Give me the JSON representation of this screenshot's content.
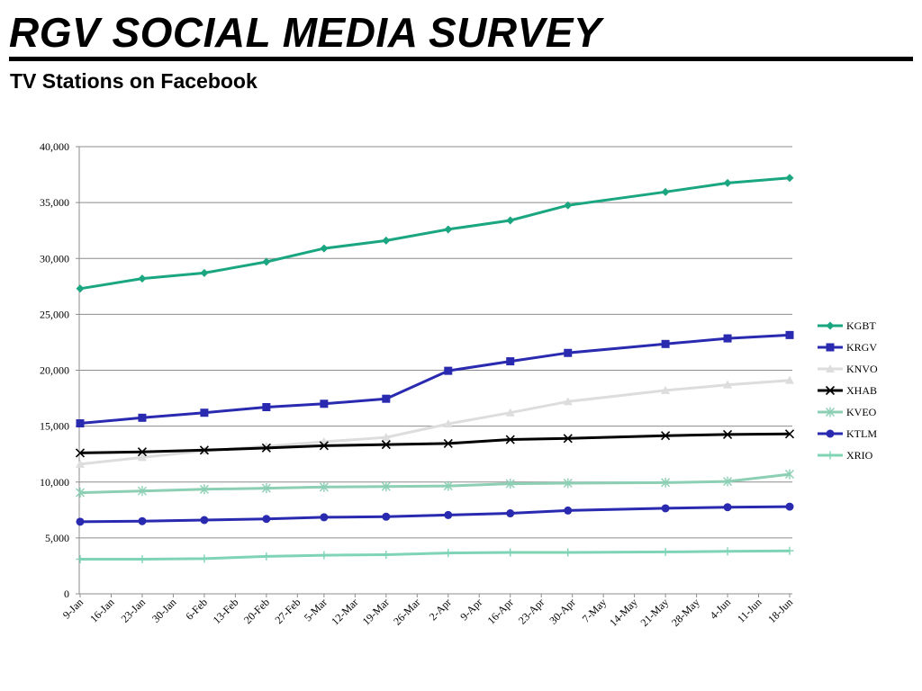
{
  "header": {
    "title": "RGV SOCIAL MEDIA SURVEY",
    "subtitle": "TV Stations on Facebook"
  },
  "chart_data": {
    "type": "line",
    "ylim": [
      0,
      40000
    ],
    "y_ticks": [
      0,
      5000,
      10000,
      15000,
      20000,
      25000,
      30000,
      35000,
      40000
    ],
    "y_tick_labels": [
      "0",
      "5,000",
      "10,000",
      "15,000",
      "20,000",
      "25,000",
      "30,000",
      "35,000",
      "40,000"
    ],
    "x_tick_labels": [
      "9-Jan",
      "16-Jan",
      "23-Jan",
      "30-Jan",
      "6-Feb",
      "13-Feb",
      "20-Feb",
      "27-Feb",
      "5-Mar",
      "12-Mar",
      "19-Mar",
      "26-Mar",
      "2-Apr",
      "9-Apr",
      "16-Apr",
      "23-Apr",
      "30-Apr",
      "7-May",
      "14-May",
      "21-May",
      "28-May",
      "4-Jun",
      "11-Jun",
      "18-Jun"
    ],
    "x": [
      "9-Jan",
      "23-Jan",
      "6-Feb",
      "20-Feb",
      "5-Mar",
      "19-Mar",
      "2-Apr",
      "16-Apr",
      "29-Apr",
      "21-May",
      "4-Jun",
      "18-Jun"
    ],
    "grid": true,
    "legend_position": "right",
    "series": [
      {
        "name": "KGBT",
        "color": "#1aa680",
        "marker": "diamond",
        "values": [
          27300,
          28200,
          28700,
          29700,
          30900,
          31600,
          32600,
          33400,
          34750,
          35950,
          36750,
          37200
        ]
      },
      {
        "name": "KRGV",
        "color": "#2a2ab0",
        "marker": "square",
        "values": [
          15250,
          15750,
          16200,
          16700,
          17000,
          17450,
          19950,
          20800,
          21550,
          22350,
          22850,
          23150
        ]
      },
      {
        "name": "KNVO",
        "color": "#dddddd",
        "marker": "triangle",
        "values": [
          11600,
          12200,
          12800,
          13200,
          13600,
          14000,
          15200,
          16200,
          17200,
          18200,
          18700,
          19100
        ]
      },
      {
        "name": "XHAB",
        "color": "#000000",
        "marker": "x",
        "values": [
          12600,
          12700,
          12850,
          13050,
          13250,
          13350,
          13450,
          13800,
          13900,
          14150,
          14250,
          14300
        ]
      },
      {
        "name": "KVEO",
        "color": "#8ccfb4",
        "marker": "star",
        "values": [
          9050,
          9200,
          9350,
          9450,
          9550,
          9600,
          9650,
          9850,
          9900,
          9950,
          10050,
          10700
        ]
      },
      {
        "name": "KTLM",
        "color": "#2a2ab0",
        "marker": "circle",
        "values": [
          6450,
          6500,
          6600,
          6700,
          6850,
          6900,
          7050,
          7200,
          7450,
          7650,
          7750,
          7800
        ]
      },
      {
        "name": "XRIO",
        "color": "#7fd4b6",
        "marker": "plus",
        "values": [
          3100,
          3100,
          3150,
          3350,
          3450,
          3500,
          3650,
          3700,
          3700,
          3750,
          3800,
          3850
        ]
      }
    ]
  }
}
